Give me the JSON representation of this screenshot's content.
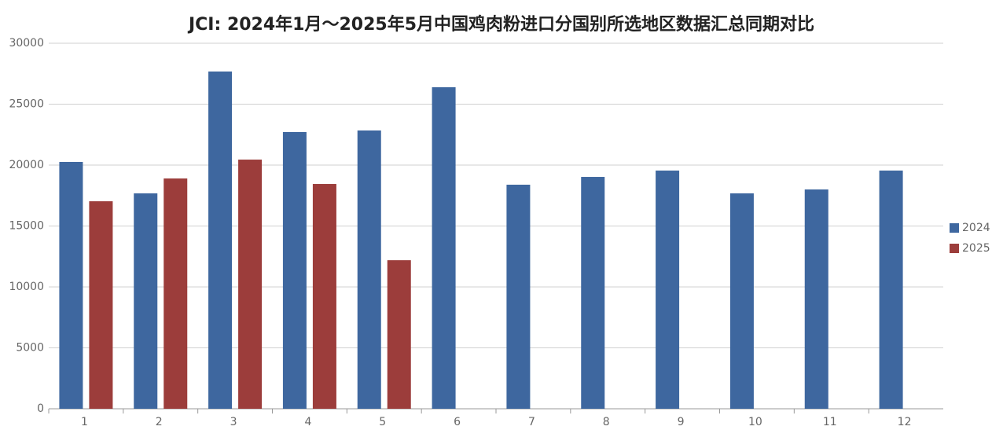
{
  "chart_data": {
    "type": "bar",
    "title": "JCI: 2024年1月～2025年5月中国鸡肉粉进口分国别所选地区数据汇总同期对比",
    "categories": [
      "1",
      "2",
      "3",
      "4",
      "5",
      "6",
      "7",
      "8",
      "9",
      "10",
      "11",
      "12"
    ],
    "series": [
      {
        "name": "2024",
        "color": "#3e679f",
        "values": [
          20260,
          17680,
          27680,
          22710,
          22840,
          26390,
          18390,
          19030,
          19550,
          17680,
          18000,
          19550
        ]
      },
      {
        "name": "2025",
        "color": "#9c3d3b",
        "values": [
          17030,
          18900,
          20450,
          18450,
          12190,
          null,
          null,
          null,
          null,
          null,
          null,
          null
        ]
      }
    ],
    "ylim": [
      0,
      30000
    ],
    "yticks": [
      0,
      5000,
      10000,
      15000,
      20000,
      25000,
      30000
    ],
    "grid": true,
    "legend": "right"
  }
}
